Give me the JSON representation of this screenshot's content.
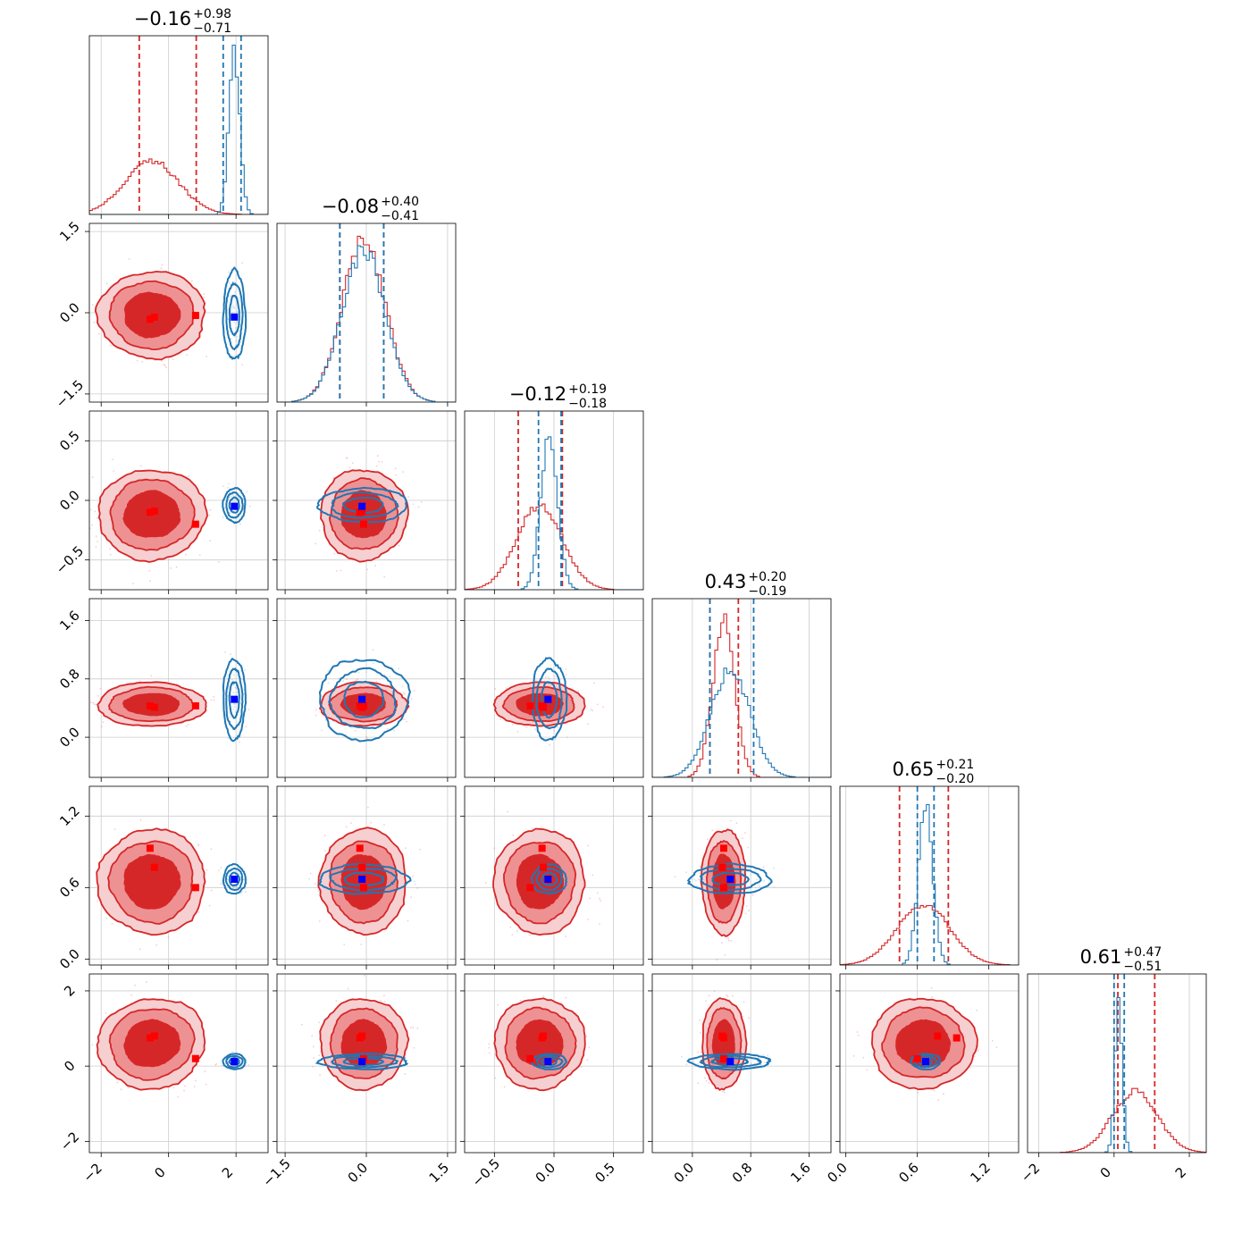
{
  "chart_data": {
    "type": "corner",
    "grid": true,
    "colors": {
      "red": "#d62728",
      "blue": "#1f77b4",
      "marker_red": "#ff0000",
      "marker_blue": "#0000ff"
    },
    "series": [
      {
        "color": "red"
      },
      {
        "color": "blue"
      }
    ],
    "params": [
      {
        "title": {
          "value": "−0.16",
          "plus": "+0.98",
          "minus": "−0.71"
        },
        "range": [
          -2.35,
          2.95
        ],
        "ticks": [
          -2,
          0,
          2
        ],
        "tick_labels": [
          "−2",
          "0",
          "2"
        ],
        "red": {
          "mean": -0.5,
          "sd": 0.8,
          "quantiles": [
            -0.87,
            0.82
          ]
        },
        "blue": {
          "mean": 1.95,
          "sd": 0.16,
          "quantiles": [
            1.62,
            2.15
          ]
        },
        "markers": {
          "red": [
            -0.55,
            -0.42,
            0.8
          ],
          "blue": 1.95
        }
      },
      {
        "title": {
          "value": "−0.08",
          "plus": "+0.40",
          "minus": "−0.41"
        },
        "range": [
          -1.65,
          1.65
        ],
        "ticks": [
          -1.5,
          0.0,
          1.5
        ],
        "tick_labels": [
          "−1.5",
          "0.0",
          "1.5"
        ],
        "red": {
          "mean": -0.05,
          "sd": 0.4,
          "quantiles": [
            -0.49,
            0.32
          ]
        },
        "blue": {
          "mean": -0.05,
          "sd": 0.4,
          "quantiles": [
            -0.49,
            0.32
          ]
        },
        "markers": {
          "red": [
            -0.12,
            -0.08,
            -0.05
          ],
          "blue": -0.08
        }
      },
      {
        "title": {
          "value": "−0.12",
          "plus": "+0.19",
          "minus": "−0.18"
        },
        "range": [
          -0.75,
          0.75
        ],
        "ticks": [
          -0.5,
          0.0,
          0.5
        ],
        "tick_labels": [
          "−0.5",
          "0.0",
          "0.5"
        ],
        "red": {
          "mean": -0.12,
          "sd": 0.19,
          "quantiles": [
            -0.3,
            0.07
          ]
        },
        "blue": {
          "mean": -0.04,
          "sd": 0.07,
          "quantiles": [
            -0.13,
            0.06
          ]
        },
        "markers": {
          "red": [
            -0.1,
            -0.09,
            -0.2
          ],
          "blue": -0.05
        }
      },
      {
        "title": {
          "value": "0.43",
          "plus": "+0.20",
          "minus": "−0.19"
        },
        "range": [
          -0.55,
          1.9
        ],
        "ticks": [
          0.0,
          0.8,
          1.6
        ],
        "tick_labels": [
          "0.0",
          "0.8",
          "1.6"
        ],
        "red": {
          "mean": 0.43,
          "sd": 0.15,
          "quantiles": [
            0.24,
            0.63
          ]
        },
        "blue": {
          "mean": 0.52,
          "sd": 0.27,
          "quantiles": [
            0.24,
            0.84
          ]
        },
        "markers": {
          "red": [
            0.43,
            0.41,
            0.43
          ],
          "blue": 0.52
        }
      },
      {
        "title": {
          "value": "0.65",
          "plus": "+0.21",
          "minus": "−0.20"
        },
        "range": [
          -0.05,
          1.45
        ],
        "ticks": [
          0.0,
          0.6,
          1.2
        ],
        "tick_labels": [
          "0.0",
          "0.6",
          "1.2"
        ],
        "red": {
          "mean": 0.65,
          "sd": 0.22,
          "quantiles": [
            0.45,
            0.86
          ]
        },
        "blue": {
          "mean": 0.67,
          "sd": 0.06,
          "quantiles": [
            0.6,
            0.74
          ]
        },
        "markers": {
          "red": [
            0.93,
            0.77,
            0.6
          ],
          "blue": 0.67
        }
      },
      {
        "title": {
          "value": "0.61",
          "plus": "+0.47",
          "minus": "−0.51"
        },
        "range": [
          -2.3,
          2.45
        ],
        "ticks": [
          -2,
          0,
          2
        ],
        "tick_labels": [
          "−2",
          "0",
          "2"
        ],
        "red": {
          "mean": 0.55,
          "sd": 0.6,
          "quantiles": [
            0.1,
            1.08
          ]
        },
        "blue": {
          "mean": 0.12,
          "sd": 0.1,
          "quantiles": [
            0.0,
            0.27
          ]
        },
        "markers": {
          "red": [
            0.75,
            0.8,
            0.2
          ],
          "blue": 0.12
        }
      }
    ],
    "pairs": [
      {
        "i": 0,
        "j": 1,
        "red_rho": 0.0,
        "red_m": 0,
        "red_c": -0.04,
        "blue_rho": 0.0
      },
      {
        "i": 0,
        "j": 2,
        "red_rho": -0.15,
        "red_m": -0.02,
        "red_c": -0.12,
        "blue_rho": 0.0
      },
      {
        "i": 0,
        "j": 3,
        "red_rho": 0.0,
        "red_m": 0,
        "red_c": 0.45,
        "blue_rho": 0.0
      },
      {
        "i": 0,
        "j": 4,
        "red_rho": 0.0,
        "red_m": 0,
        "red_c": 0.65,
        "blue_rho": 0.0
      },
      {
        "i": 0,
        "j": 5,
        "red_rho": -0.5,
        "red_m": -0.22,
        "red_c": 0.6,
        "blue_rho": 0.0
      },
      {
        "i": 1,
        "j": 2,
        "red_rho": 0.0,
        "red_m": 0,
        "red_c": -0.12,
        "blue_rho": 0.0
      },
      {
        "i": 1,
        "j": 3,
        "red_rho": 0.0,
        "red_m": 0,
        "red_c": 0.45,
        "blue_rho": 0.0
      },
      {
        "i": 1,
        "j": 4,
        "red_rho": 0.0,
        "red_m": 0,
        "red_c": 0.65,
        "blue_rho": 0.0
      },
      {
        "i": 1,
        "j": 5,
        "red_rho": 0.0,
        "red_m": 0,
        "red_c": 0.6,
        "blue_rho": 0.0
      },
      {
        "i": 2,
        "j": 3,
        "red_rho": 0.0,
        "red_m": 0,
        "red_c": 0.45,
        "blue_rho": 0.0
      },
      {
        "i": 2,
        "j": 4,
        "red_rho": 0.0,
        "red_m": 0,
        "red_c": 0.65,
        "blue_rho": 0.0
      },
      {
        "i": 2,
        "j": 5,
        "red_rho": 0.0,
        "red_m": 0,
        "red_c": 0.6,
        "blue_rho": 0.0
      },
      {
        "i": 3,
        "j": 4,
        "red_rho": 0.0,
        "red_m": 0,
        "red_c": 0.65,
        "blue_rho": 0.0
      },
      {
        "i": 3,
        "j": 5,
        "red_rho": 0.0,
        "red_m": 0,
        "red_c": 0.6,
        "blue_rho": 0.0
      },
      {
        "i": 4,
        "j": 5,
        "red_rho": 0.0,
        "red_m": 0,
        "red_c": 0.6,
        "blue_rho": 0.0
      }
    ]
  }
}
